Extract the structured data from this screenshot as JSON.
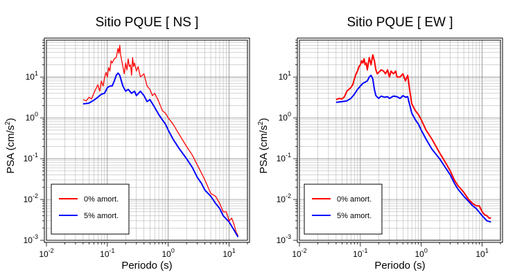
{
  "chart_data": [
    {
      "type": "line",
      "title": "Sitio PQUE [ NS ]",
      "xlabel": "Periodo (s)",
      "ylabel_main": "PSA (cm/s",
      "ylabel_sup": "2",
      "ylabel_end": ")",
      "xscale": "log",
      "yscale": "log",
      "xlim": [
        0.01,
        20
      ],
      "ylim": [
        0.001,
        80
      ],
      "grid": true,
      "legend": "bottom-left",
      "x_ticks": [
        {
          "base": "10",
          "exp": "-2"
        },
        {
          "base": "10",
          "exp": "-1"
        },
        {
          "base": "10",
          "exp": "0"
        },
        {
          "base": "10",
          "exp": "1"
        }
      ],
      "y_ticks": [
        {
          "base": "10",
          "exp": "-3"
        },
        {
          "base": "10",
          "exp": "-2"
        },
        {
          "base": "10",
          "exp": "-1"
        },
        {
          "base": "10",
          "exp": "0"
        },
        {
          "base": "10",
          "exp": "1"
        }
      ],
      "series": [
        {
          "name": "0% amort.",
          "color": "#ff0000",
          "width": 1.3,
          "x": [
            0.04,
            0.045,
            0.05,
            0.055,
            0.06,
            0.065,
            0.07,
            0.075,
            0.08,
            0.085,
            0.09,
            0.095,
            0.1,
            0.105,
            0.11,
            0.115,
            0.12,
            0.13,
            0.14,
            0.15,
            0.155,
            0.16,
            0.165,
            0.17,
            0.18,
            0.19,
            0.2,
            0.21,
            0.22,
            0.23,
            0.24,
            0.25,
            0.26,
            0.27,
            0.28,
            0.3,
            0.32,
            0.35,
            0.4,
            0.45,
            0.5,
            0.55,
            0.6,
            0.7,
            0.8,
            0.9,
            1.0,
            1.2,
            1.5,
            2.0,
            2.5,
            3.0,
            3.5,
            4.0,
            4.5,
            5.0,
            6.0,
            7.0,
            8.0,
            9.0,
            10.0,
            11.0,
            12.0,
            13.0,
            14.0
          ],
          "y": [
            2.8,
            2.6,
            3.2,
            2.9,
            4.0,
            5.2,
            6.5,
            4.5,
            8.0,
            6.0,
            9.5,
            13.0,
            10.0,
            17.0,
            14.0,
            25.0,
            22.0,
            28.0,
            30.0,
            50.0,
            38.0,
            60.0,
            35.0,
            28.0,
            18.0,
            12.0,
            22.0,
            15.0,
            28.0,
            18.0,
            20.0,
            11.0,
            30.0,
            18.0,
            22.0,
            14.0,
            18.0,
            10.0,
            12.0,
            6.0,
            5.0,
            3.5,
            4.0,
            2.5,
            1.5,
            1.3,
            1.0,
            0.7,
            0.4,
            0.2,
            0.12,
            0.07,
            0.045,
            0.03,
            0.02,
            0.014,
            0.012,
            0.008,
            0.005,
            0.005,
            0.003,
            0.0035,
            0.0025,
            0.0016,
            0.0013
          ]
        },
        {
          "name": "5% amort.",
          "color": "#0000ff",
          "width": 2,
          "x": [
            0.04,
            0.05,
            0.06,
            0.07,
            0.08,
            0.09,
            0.1,
            0.11,
            0.12,
            0.13,
            0.14,
            0.15,
            0.16,
            0.17,
            0.18,
            0.2,
            0.22,
            0.25,
            0.28,
            0.3,
            0.35,
            0.4,
            0.45,
            0.5,
            0.6,
            0.7,
            0.8,
            0.9,
            1.0,
            1.2,
            1.5,
            2.0,
            2.5,
            3.0,
            3.5,
            4.0,
            5.0,
            6.0,
            7.0,
            8.0,
            10.0,
            12.0,
            14.0
          ],
          "y": [
            2.2,
            2.3,
            2.7,
            3.2,
            3.8,
            4.0,
            5.5,
            6.0,
            6.0,
            8.0,
            11.0,
            12.5,
            11.0,
            8.0,
            6.0,
            4.5,
            5.0,
            4.0,
            4.5,
            3.5,
            4.5,
            3.5,
            2.5,
            2.8,
            1.8,
            1.2,
            0.9,
            0.7,
            0.5,
            0.3,
            0.18,
            0.1,
            0.06,
            0.035,
            0.025,
            0.017,
            0.012,
            0.008,
            0.006,
            0.004,
            0.0028,
            0.0018,
            0.0012
          ]
        }
      ]
    },
    {
      "type": "line",
      "title": "Sitio PQUE [ EW ]",
      "xlabel": "Periodo (s)",
      "ylabel_main": "PSA (cm/s",
      "ylabel_sup": "2",
      "ylabel_end": ")",
      "xscale": "log",
      "yscale": "log",
      "xlim": [
        0.01,
        20
      ],
      "ylim": [
        0.001,
        80
      ],
      "grid": true,
      "legend": "bottom-left",
      "x_ticks": [
        {
          "base": "10",
          "exp": "-2"
        },
        {
          "base": "10",
          "exp": "-1"
        },
        {
          "base": "10",
          "exp": "0"
        },
        {
          "base": "10",
          "exp": "1"
        }
      ],
      "y_ticks": [
        {
          "base": "10",
          "exp": "-3"
        },
        {
          "base": "10",
          "exp": "-2"
        },
        {
          "base": "10",
          "exp": "-1"
        },
        {
          "base": "10",
          "exp": "0"
        },
        {
          "base": "10",
          "exp": "1"
        }
      ],
      "series": [
        {
          "name": "0% amort.",
          "color": "#ff0000",
          "width": 2,
          "x": [
            0.04,
            0.045,
            0.05,
            0.055,
            0.06,
            0.065,
            0.07,
            0.075,
            0.08,
            0.085,
            0.09,
            0.095,
            0.1,
            0.105,
            0.11,
            0.115,
            0.12,
            0.125,
            0.13,
            0.14,
            0.15,
            0.16,
            0.17,
            0.18,
            0.19,
            0.2,
            0.22,
            0.24,
            0.26,
            0.28,
            0.3,
            0.32,
            0.35,
            0.38,
            0.4,
            0.45,
            0.5,
            0.55,
            0.6,
            0.65,
            0.7,
            0.8,
            0.9,
            1.0,
            1.2,
            1.5,
            2.0,
            2.5,
            3.0,
            3.5,
            4.0,
            5.0,
            6.0,
            7.0,
            8.0,
            9.0,
            10.0,
            11.0,
            12.0,
            13.0,
            14.0
          ],
          "y": [
            2.8,
            3.0,
            2.9,
            3.3,
            4.5,
            5.0,
            5.5,
            6.5,
            9.0,
            12.0,
            14.0,
            18.0,
            20.0,
            25.0,
            22.0,
            28.0,
            20.0,
            22.0,
            15.0,
            30.0,
            20.0,
            35.0,
            25.0,
            15.0,
            12.0,
            13.0,
            15.0,
            14.0,
            12.0,
            15.0,
            10.0,
            14.0,
            12.0,
            14.0,
            10.0,
            10.0,
            12.0,
            8.0,
            11.0,
            4.5,
            2.2,
            1.5,
            1.2,
            0.9,
            0.5,
            0.3,
            0.14,
            0.08,
            0.05,
            0.03,
            0.022,
            0.015,
            0.01,
            0.008,
            0.007,
            0.007,
            0.005,
            0.0042,
            0.004,
            0.0035,
            0.0035
          ]
        },
        {
          "name": "5% amort.",
          "color": "#0000ff",
          "width": 2,
          "x": [
            0.04,
            0.05,
            0.06,
            0.07,
            0.08,
            0.09,
            0.1,
            0.11,
            0.12,
            0.13,
            0.14,
            0.15,
            0.16,
            0.17,
            0.18,
            0.2,
            0.22,
            0.25,
            0.28,
            0.3,
            0.35,
            0.4,
            0.45,
            0.5,
            0.55,
            0.6,
            0.65,
            0.7,
            0.8,
            0.9,
            1.0,
            1.2,
            1.5,
            2.0,
            2.5,
            3.0,
            3.5,
            4.0,
            5.0,
            6.0,
            7.0,
            8.0,
            10.0,
            12.0,
            14.0
          ],
          "y": [
            2.4,
            2.5,
            2.6,
            3.0,
            3.8,
            5.0,
            6.0,
            7.0,
            7.5,
            8.0,
            10.0,
            11.0,
            9.0,
            5.0,
            3.5,
            3.0,
            3.4,
            3.2,
            3.3,
            3.0,
            3.4,
            3.3,
            3.0,
            3.5,
            3.2,
            3.3,
            2.0,
            1.3,
            0.9,
            0.7,
            0.5,
            0.3,
            0.17,
            0.1,
            0.06,
            0.04,
            0.025,
            0.018,
            0.012,
            0.009,
            0.007,
            0.006,
            0.004,
            0.003,
            0.0028
          ]
        }
      ]
    }
  ]
}
